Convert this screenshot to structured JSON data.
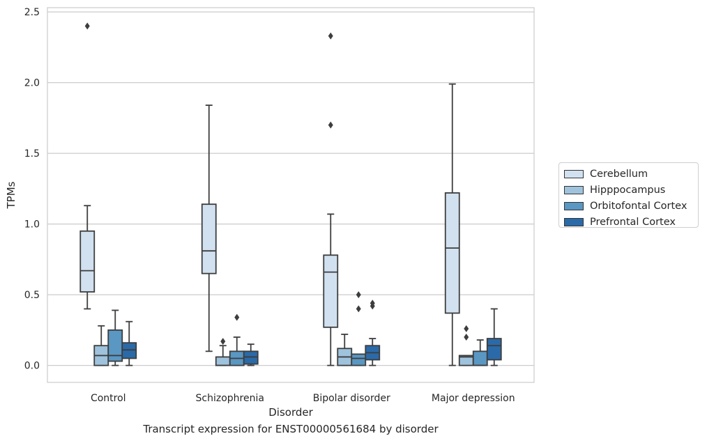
{
  "caption": "Transcript expression for ENST00000561684 by disorder",
  "chart_data": {
    "type": "box",
    "xlabel": "Disorder",
    "ylabel": "TPMs",
    "ylim": [
      -0.12,
      2.53
    ],
    "yticks": [
      0.0,
      0.5,
      1.0,
      1.5,
      2.0,
      2.5
    ],
    "ytick_labels": [
      "0.0",
      "0.5",
      "1.0",
      "1.5",
      "2.0",
      "2.5"
    ],
    "grid": "horizontal",
    "legend_position": "right",
    "categories": [
      "Control",
      "Schizophrenia",
      "Bipolar disorder",
      "Major depression"
    ],
    "series": [
      {
        "name": "Cerebellum",
        "color": "#d2e1f0",
        "boxes": [
          {
            "whislo": 0.4,
            "q1": 0.52,
            "med": 0.67,
            "q3": 0.95,
            "whishi": 1.13,
            "fliers": [
              2.4
            ]
          },
          {
            "whislo": 0.1,
            "q1": 0.65,
            "med": 0.81,
            "q3": 1.14,
            "whishi": 1.84,
            "fliers": []
          },
          {
            "whislo": 0.0,
            "q1": 0.27,
            "med": 0.66,
            "q3": 0.78,
            "whishi": 1.07,
            "fliers": [
              1.7,
              2.33
            ]
          },
          {
            "whislo": 0.0,
            "q1": 0.37,
            "med": 0.83,
            "q3": 1.22,
            "whishi": 1.99,
            "fliers": []
          }
        ]
      },
      {
        "name": "Hipppocampus",
        "color": "#9fc3dd",
        "boxes": [
          {
            "whislo": 0.0,
            "q1": 0.0,
            "med": 0.07,
            "q3": 0.14,
            "whishi": 0.28,
            "fliers": []
          },
          {
            "whislo": 0.0,
            "q1": 0.0,
            "med": 0.0,
            "q3": 0.06,
            "whishi": 0.14,
            "fliers": [
              0.17
            ]
          },
          {
            "whislo": 0.0,
            "q1": 0.0,
            "med": 0.06,
            "q3": 0.12,
            "whishi": 0.22,
            "fliers": []
          },
          {
            "whislo": 0.0,
            "q1": 0.0,
            "med": 0.06,
            "q3": 0.07,
            "whishi": 0.07,
            "fliers": [
              0.2,
              0.26
            ]
          }
        ]
      },
      {
        "name": "Orbitofontal Cortex",
        "color": "#5a97c3",
        "boxes": [
          {
            "whislo": 0.0,
            "q1": 0.03,
            "med": 0.07,
            "q3": 0.25,
            "whishi": 0.39,
            "fliers": []
          },
          {
            "whislo": 0.0,
            "q1": 0.0,
            "med": 0.05,
            "q3": 0.1,
            "whishi": 0.2,
            "fliers": [
              0.34
            ]
          },
          {
            "whislo": 0.0,
            "q1": 0.0,
            "med": 0.05,
            "q3": 0.08,
            "whishi": 0.08,
            "fliers": [
              0.4,
              0.5
            ]
          },
          {
            "whislo": 0.0,
            "q1": 0.0,
            "med": 0.0,
            "q3": 0.1,
            "whishi": 0.18,
            "fliers": []
          }
        ]
      },
      {
        "name": "Prefrontal Cortex",
        "color": "#2b6aa8",
        "boxes": [
          {
            "whislo": 0.0,
            "q1": 0.05,
            "med": 0.11,
            "q3": 0.16,
            "whishi": 0.31,
            "fliers": []
          },
          {
            "whislo": 0.0,
            "q1": 0.01,
            "med": 0.06,
            "q3": 0.1,
            "whishi": 0.15,
            "fliers": []
          },
          {
            "whislo": 0.0,
            "q1": 0.04,
            "med": 0.09,
            "q3": 0.14,
            "whishi": 0.19,
            "fliers": [
              0.42,
              0.44
            ]
          },
          {
            "whislo": 0.0,
            "q1": 0.04,
            "med": 0.14,
            "q3": 0.19,
            "whishi": 0.4,
            "fliers": []
          }
        ]
      }
    ]
  }
}
